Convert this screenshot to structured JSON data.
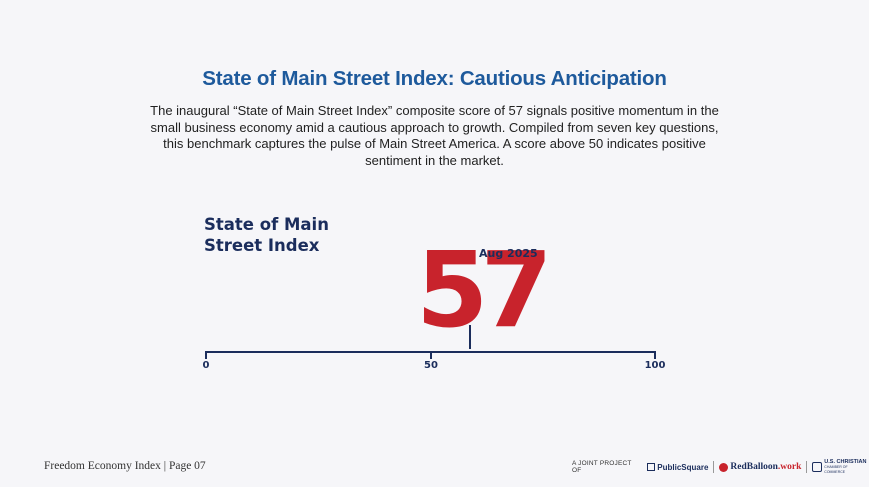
{
  "header": {
    "title": "State of Main Street Index: Cautious Anticipation",
    "intro": "The inaugural “State of Main Street Index” composite score of 57 signals positive momentum in the small business economy amid a cautious approach to growth. Compiled from seven key questions, this benchmark captures the pulse of Main Street America. A score above 50 indicates positive sentiment in the market."
  },
  "gauge": {
    "label_line1": "State of Main",
    "label_line2": "Street Index",
    "score": "57",
    "score_value": 57,
    "date": "Aug 2025",
    "scale_min": "0",
    "scale_mid": "50",
    "scale_max": "100",
    "colors": {
      "score": "#c8232c",
      "navy": "#1b2d5c",
      "title": "#1e5a9c"
    }
  },
  "footer": {
    "page_label": "Freedom Economy Index | Page 07",
    "joint_project": "A JOINT PROJECT OF",
    "logos": {
      "publicsquare": "PublicSquare",
      "redballoon_main": "RedBalloon",
      "redballoon_suffix": ".work",
      "uscc_main": "U.S. CHRISTIAN",
      "uscc_sub": "CHAMBER OF COMMERCE"
    },
    "logo_icons": [
      "square-logo-icon",
      "balloon-logo-icon",
      "chamber-logo-icon"
    ]
  }
}
